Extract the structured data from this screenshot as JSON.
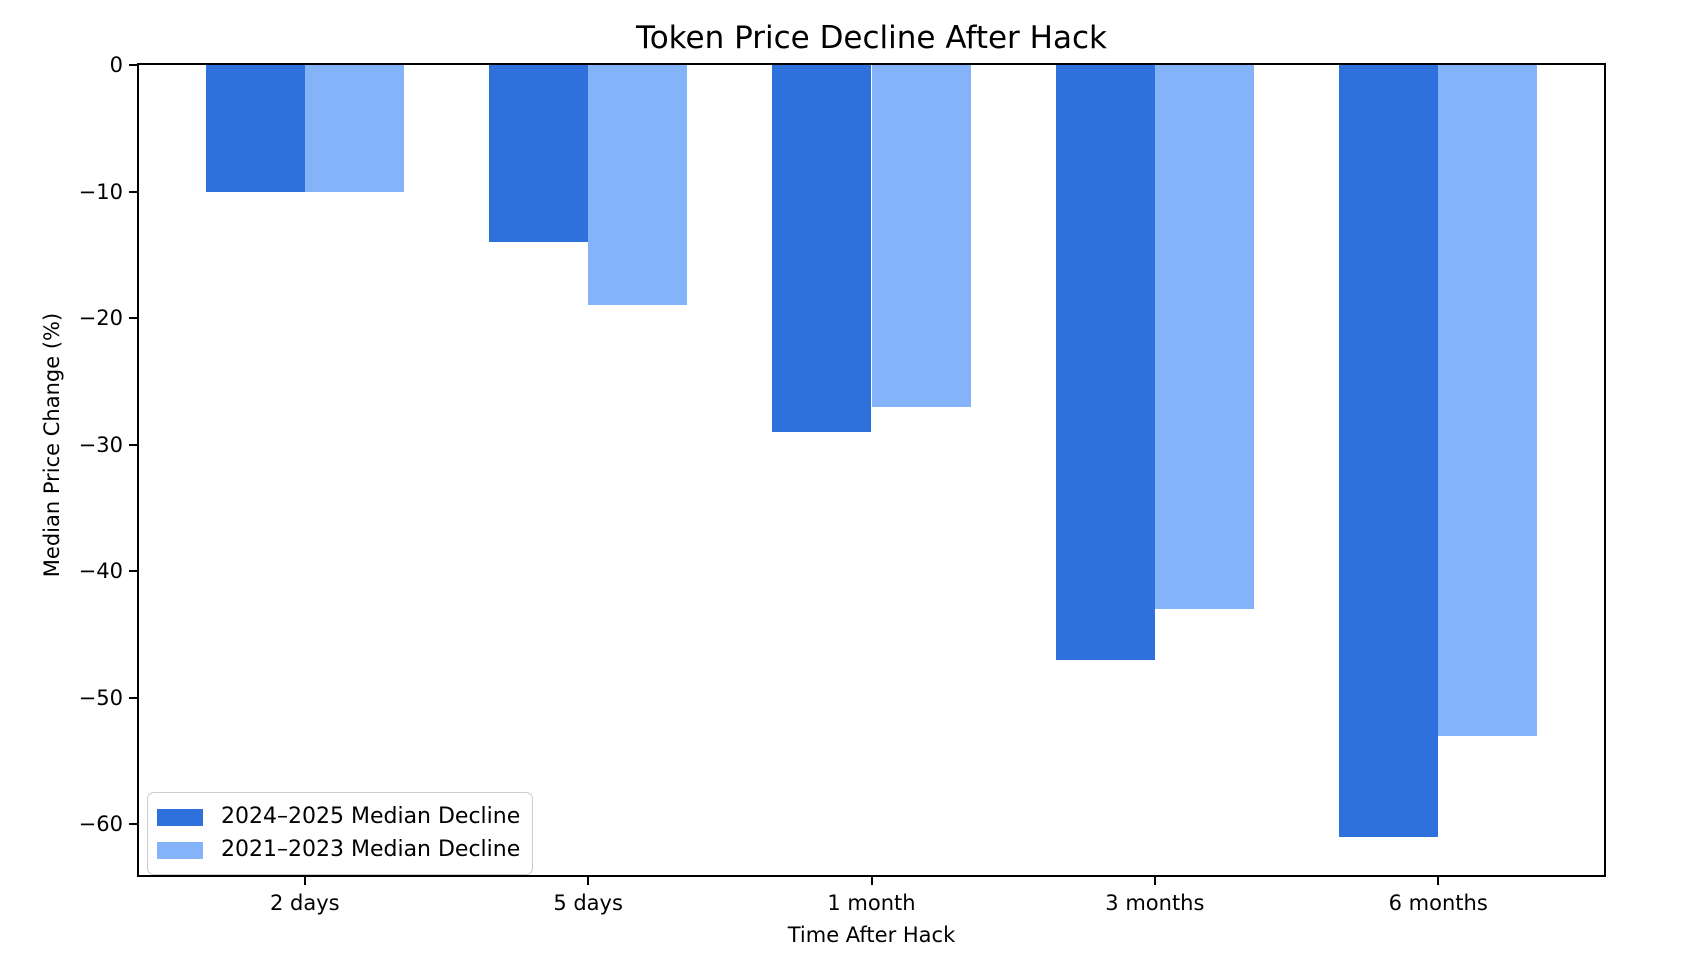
{
  "chart_data": {
    "type": "bar",
    "title": "Token Price Decline After Hack",
    "xlabel": "Time After Hack",
    "ylabel": "Median Price Change (%)",
    "categories": [
      "2 days",
      "5 days",
      "1 month",
      "3 months",
      "6 months"
    ],
    "series": [
      {
        "name": "2024–2025 Median Decline",
        "color": "#2e70dc",
        "values": [
          -10,
          -14,
          -29,
          -47,
          -61
        ]
      },
      {
        "name": "2021–2023 Median Decline",
        "color": "#84b3f9",
        "values": [
          -10,
          -19,
          -27,
          -43,
          -53
        ]
      }
    ],
    "ylim": [
      -64,
      0
    ],
    "yticks": [
      0,
      -10,
      -20,
      -30,
      -40,
      -50,
      -60
    ],
    "ytick_labels": [
      "0",
      "−10",
      "−20",
      "−30",
      "−40",
      "−50",
      "−60"
    ],
    "legend_position": "lower left",
    "grid": false,
    "bar_width_fraction": 0.35,
    "background_color": "#ffffff",
    "spine_color": "#000000"
  }
}
